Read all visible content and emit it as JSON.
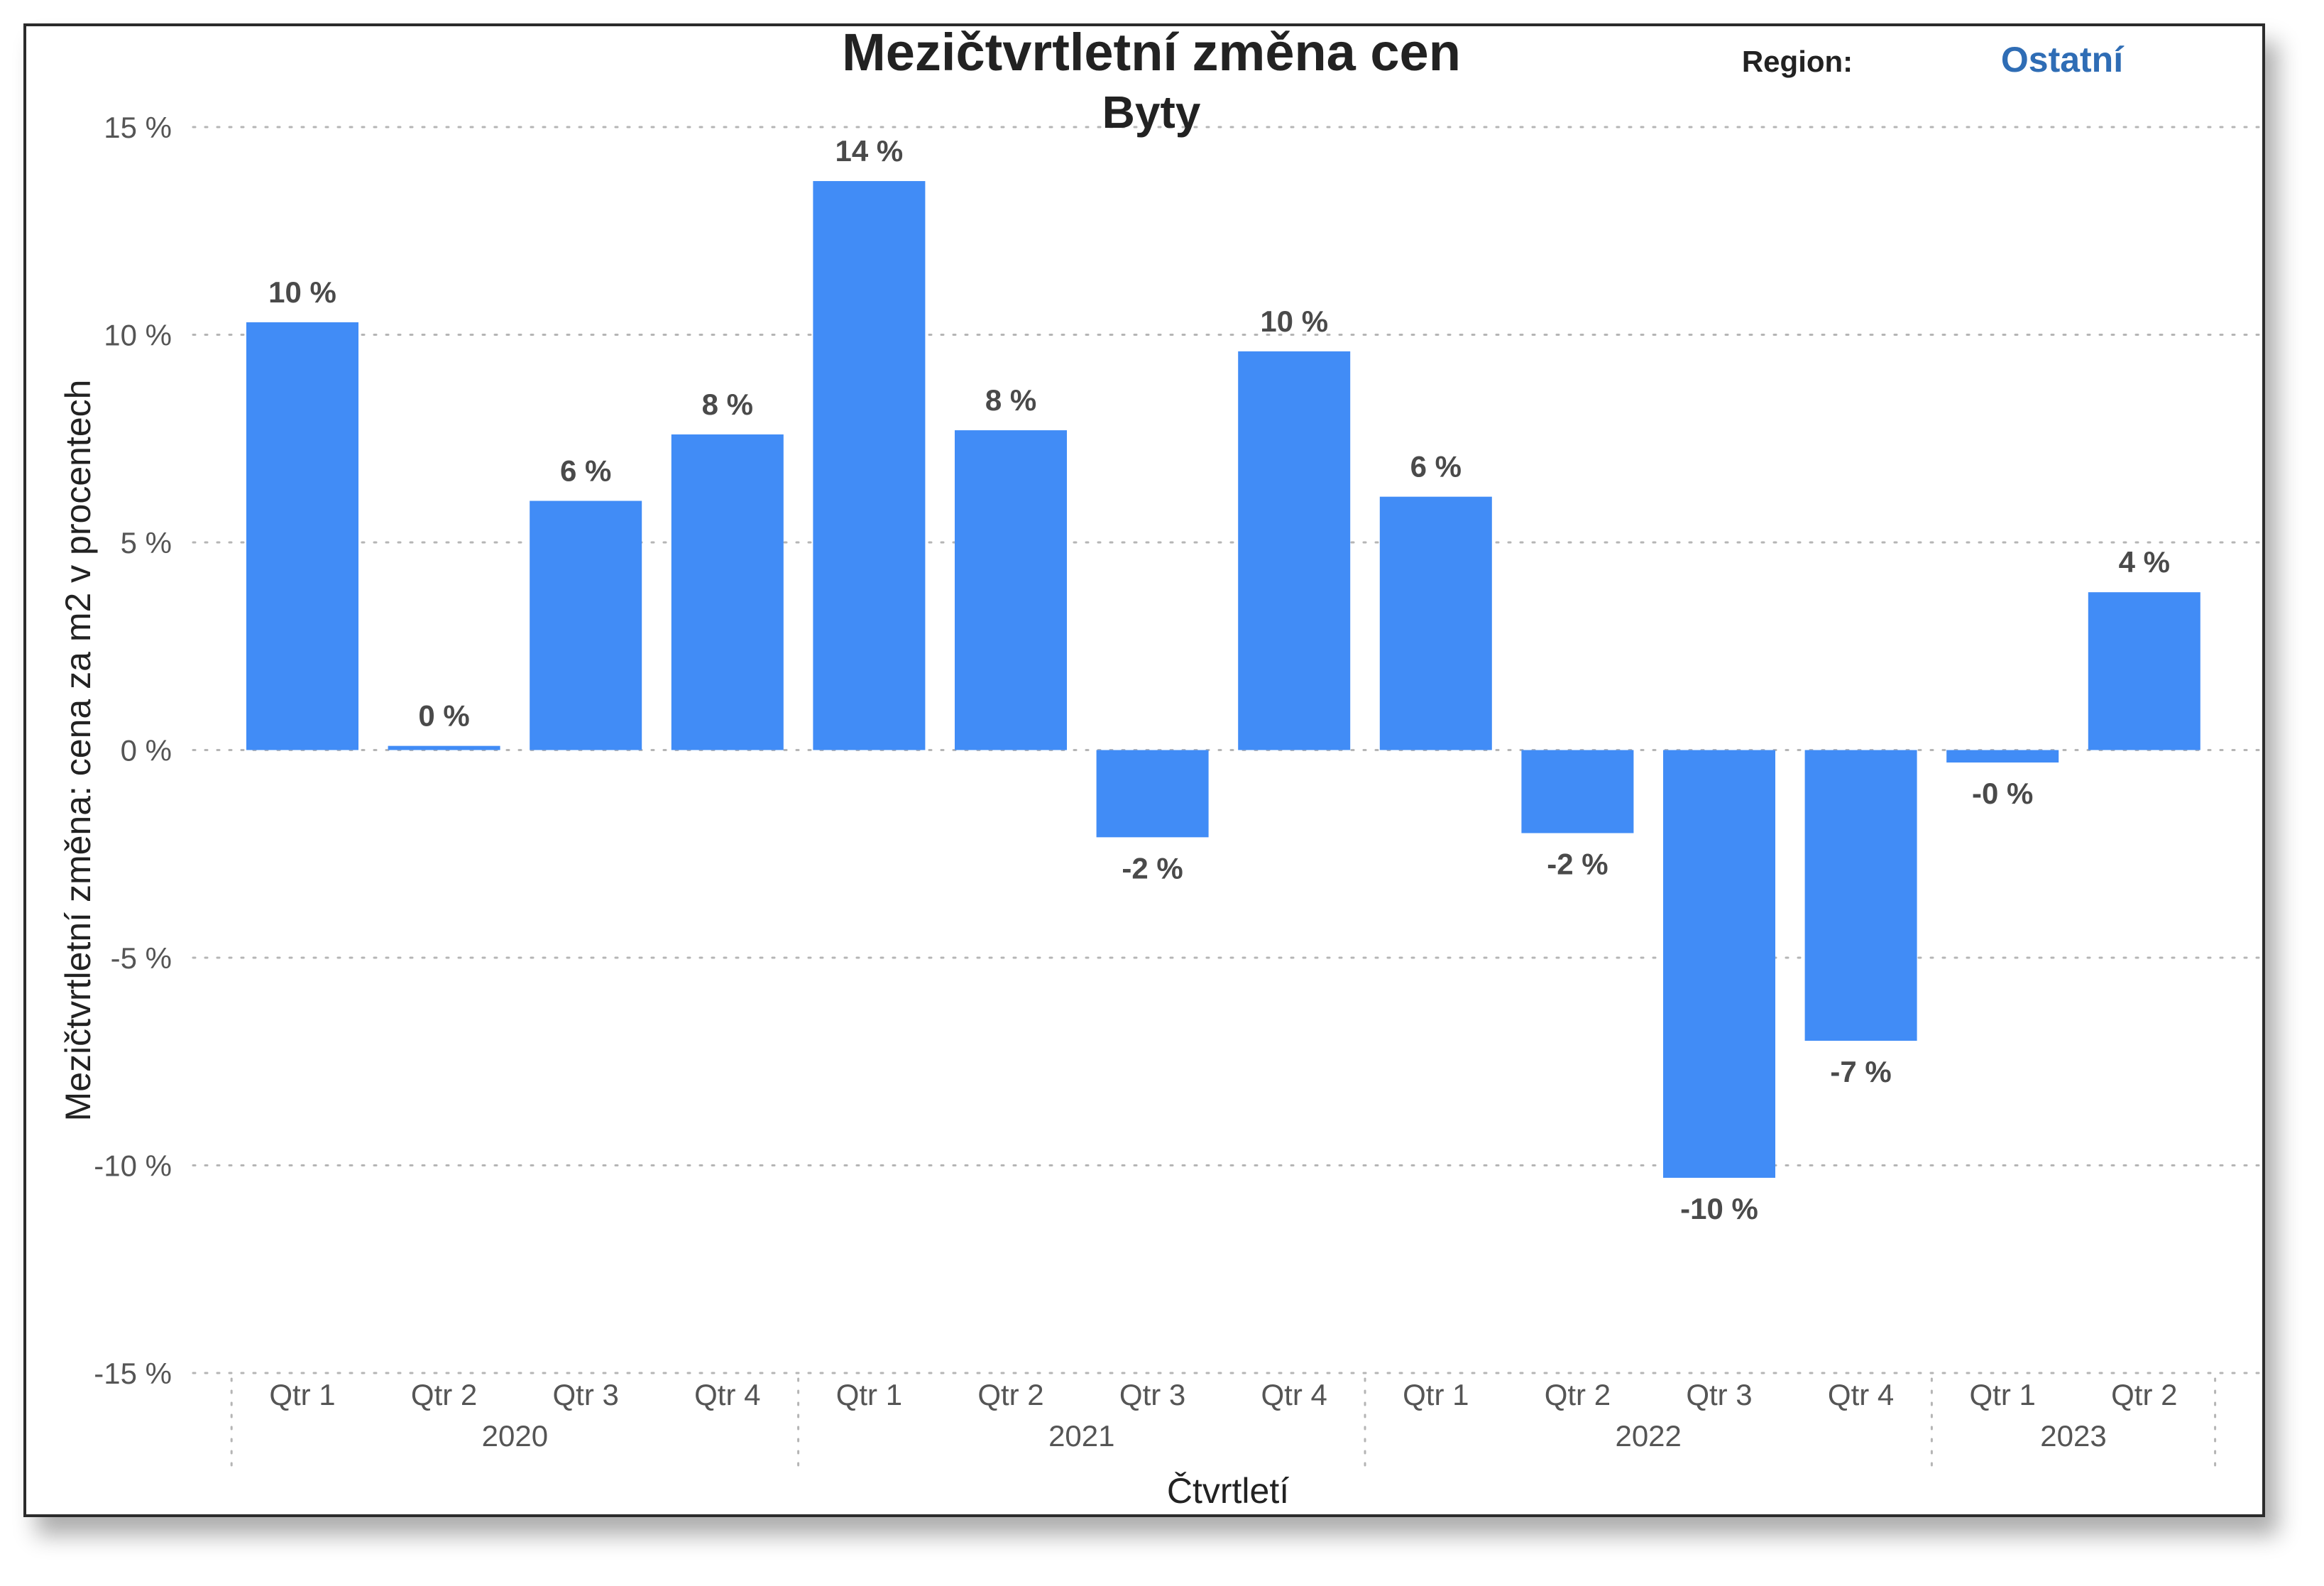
{
  "chart_data": {
    "type": "bar",
    "title": "Mezičtvrtletní změna cen",
    "subtitle": "Byty",
    "xlabel": "Čtvrtletí",
    "ylabel": "Mezičtvrtletní změna: cena za m2 v procentech",
    "ylim": [
      -15,
      15
    ],
    "yticks": [
      15,
      10,
      5,
      0,
      -5,
      -10,
      -15
    ],
    "tick_suffix": " %",
    "grid": true,
    "bar_color": "#418cf6",
    "categories": [
      "Qtr 1",
      "Qtr 2",
      "Qtr 3",
      "Qtr 4",
      "Qtr 1",
      "Qtr 2",
      "Qtr 3",
      "Qtr 4",
      "Qtr 1",
      "Qtr 2",
      "Qtr 3",
      "Qtr 4",
      "Qtr 1",
      "Qtr 2"
    ],
    "values": [
      10.3,
      0.1,
      6.0,
      7.6,
      13.7,
      7.7,
      -2.1,
      9.6,
      6.1,
      -2.0,
      -10.3,
      -7.0,
      -0.3,
      3.8
    ],
    "data_labels": [
      "10 %",
      "0 %",
      "6 %",
      "8 %",
      "14 %",
      "8 %",
      "-2 %",
      "10 %",
      "6 %",
      "-2 %",
      "-10 %",
      "-7 %",
      "-0 %",
      "4 %"
    ],
    "groups": [
      {
        "label": "2020",
        "count": 4
      },
      {
        "label": "2021",
        "count": 4
      },
      {
        "label": "2022",
        "count": 4
      },
      {
        "label": "2023",
        "count": 2
      }
    ]
  },
  "filter": {
    "label": "Region:",
    "value": "Ostatní",
    "value_color": "#2f6db5"
  }
}
